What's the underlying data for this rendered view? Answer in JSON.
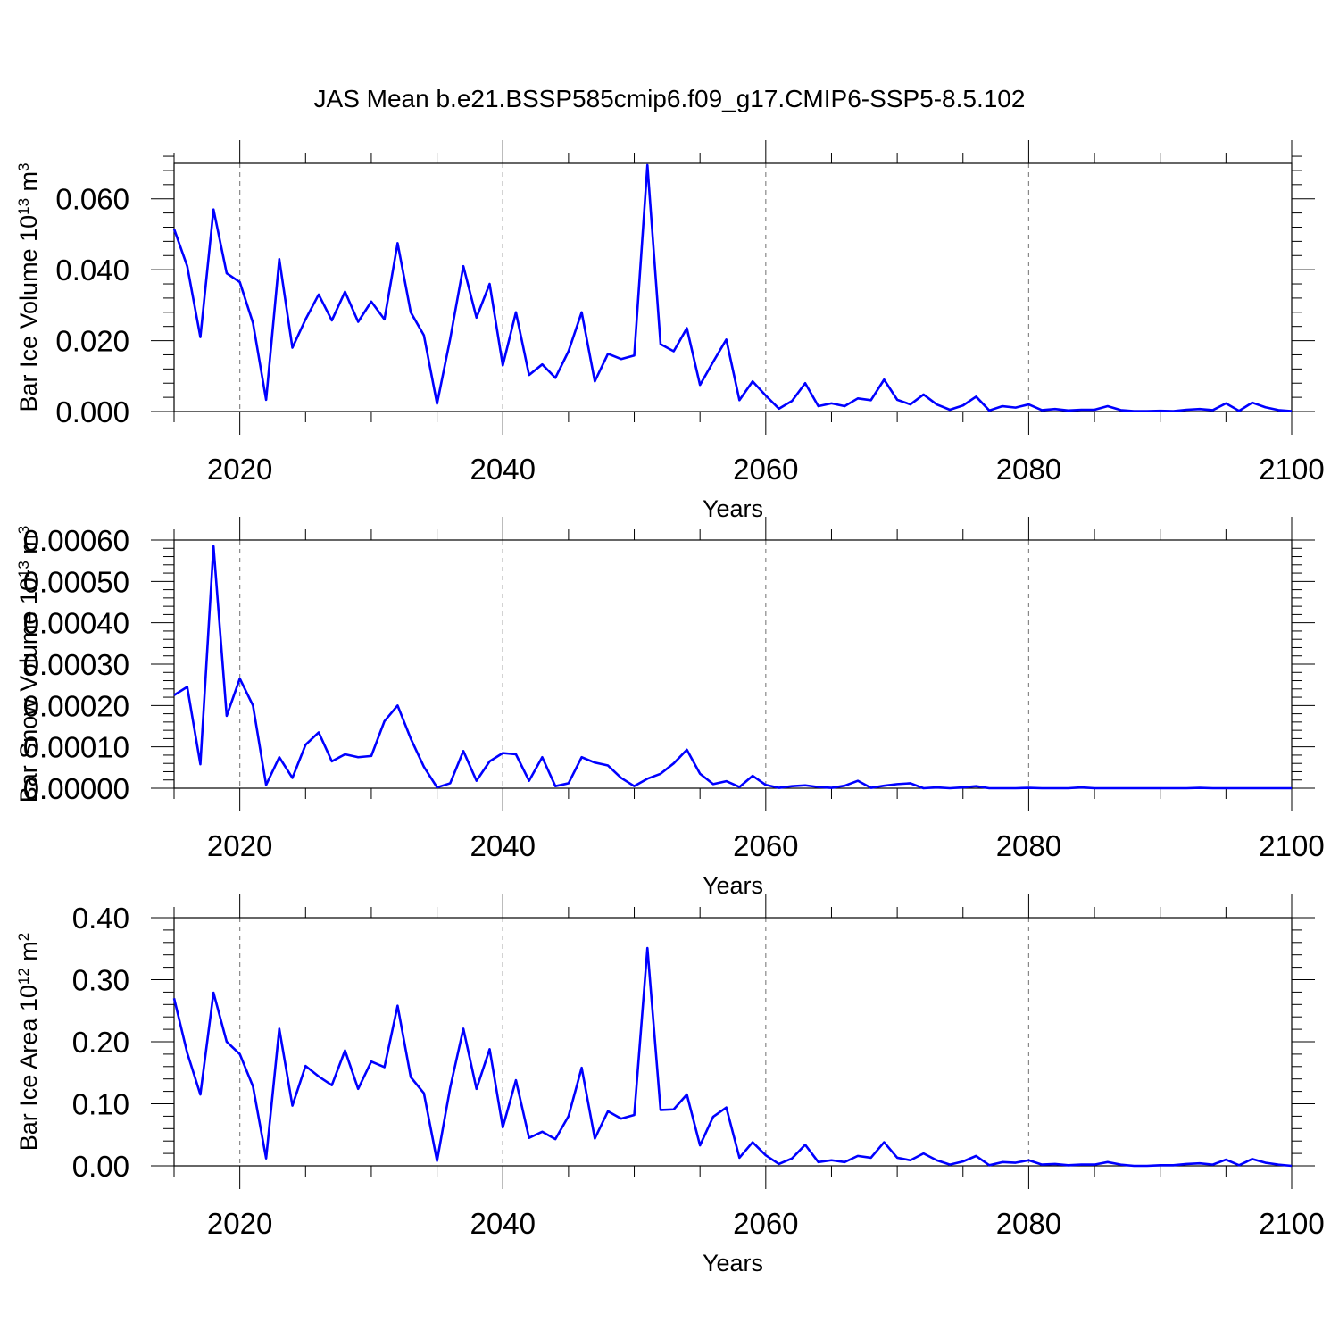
{
  "title": "JAS Mean b.e21.BSSP585cmip6.f09_g17.CMIP6-SSP5-8.5.102",
  "colors": {
    "line": "#0000ff",
    "frame": "#000000",
    "grid": "#888888"
  },
  "chart_data": [
    {
      "type": "line",
      "xlabel": "Years",
      "ylabel_main": "Bar Ice Volume 10",
      "ylabel_exp": "13",
      "ylabel_unit": " m",
      "ylabel_unit_exp": "3",
      "xlim": [
        2015,
        2100
      ],
      "ylim": [
        0.0,
        0.07
      ],
      "xticks": [
        2020,
        2040,
        2060,
        2080,
        2100
      ],
      "yticks": [
        0.0,
        0.02,
        0.04,
        0.06
      ],
      "ytick_labels": [
        "0.000",
        "0.020",
        "0.040",
        "0.060"
      ],
      "grid_x": [
        2020,
        2040,
        2060,
        2080
      ],
      "x": [
        2015,
        2016,
        2017,
        2018,
        2019,
        2020,
        2021,
        2022,
        2023,
        2024,
        2025,
        2026,
        2027,
        2028,
        2029,
        2030,
        2031,
        2032,
        2033,
        2034,
        2035,
        2036,
        2037,
        2038,
        2039,
        2040,
        2041,
        2042,
        2043,
        2044,
        2045,
        2046,
        2047,
        2048,
        2049,
        2050,
        2051,
        2052,
        2053,
        2054,
        2055,
        2056,
        2057,
        2058,
        2059,
        2060,
        2061,
        2062,
        2063,
        2064,
        2065,
        2066,
        2067,
        2068,
        2069,
        2070,
        2071,
        2072,
        2073,
        2074,
        2075,
        2076,
        2077,
        2078,
        2079,
        2080,
        2081,
        2082,
        2083,
        2084,
        2085,
        2086,
        2087,
        2088,
        2089,
        2090,
        2091,
        2092,
        2093,
        2094,
        2095,
        2096,
        2097,
        2098,
        2099,
        2100
      ],
      "series": [
        {
          "values": [
            0.0515,
            0.041,
            0.021,
            0.057,
            0.039,
            0.0365,
            0.025,
            0.0033,
            0.043,
            0.018,
            0.026,
            0.033,
            0.0257,
            0.0338,
            0.0253,
            0.031,
            0.026,
            0.0475,
            0.028,
            0.0215,
            0.0022,
            0.0205,
            0.041,
            0.0265,
            0.036,
            0.013,
            0.028,
            0.0103,
            0.0133,
            0.0095,
            0.017,
            0.028,
            0.0085,
            0.0163,
            0.0148,
            0.0158,
            0.0695,
            0.019,
            0.017,
            0.0235,
            0.0075,
            0.014,
            0.0203,
            0.0032,
            0.0085,
            0.0045,
            0.0008,
            0.003,
            0.008,
            0.0015,
            0.0023,
            0.0015,
            0.0037,
            0.0032,
            0.009,
            0.0033,
            0.002,
            0.0048,
            0.002,
            0.0005,
            0.0017,
            0.0042,
            0.0003,
            0.0015,
            0.0011,
            0.002,
            0.0004,
            0.0007,
            0.0003,
            0.0005,
            0.0005,
            0.0015,
            0.0004,
            0.0001,
            0.0001,
            0.0002,
            0.0001,
            0.0005,
            0.0007,
            0.0004,
            0.0023,
            0.0002,
            0.0025,
            0.0012,
            0.0004,
            0.0001
          ]
        }
      ]
    },
    {
      "type": "line",
      "xlabel": "Years",
      "ylabel_main": "Bar Snow Volume 10",
      "ylabel_exp": "13",
      "ylabel_unit": " m",
      "ylabel_unit_exp": "3",
      "xlim": [
        2015,
        2100
      ],
      "ylim": [
        0.0,
        0.0006
      ],
      "xticks": [
        2020,
        2040,
        2060,
        2080,
        2100
      ],
      "yticks": [
        0.0,
        0.0001,
        0.0002,
        0.0003,
        0.0004,
        0.0005,
        0.0006
      ],
      "ytick_labels": [
        "0.00000",
        "0.00010",
        "0.00020",
        "0.00030",
        "0.00040",
        "0.00050",
        "0.00060"
      ],
      "grid_x": [
        2020,
        2040,
        2060,
        2080
      ],
      "x": [
        2015,
        2016,
        2017,
        2018,
        2019,
        2020,
        2021,
        2022,
        2023,
        2024,
        2025,
        2026,
        2027,
        2028,
        2029,
        2030,
        2031,
        2032,
        2033,
        2034,
        2035,
        2036,
        2037,
        2038,
        2039,
        2040,
        2041,
        2042,
        2043,
        2044,
        2045,
        2046,
        2047,
        2048,
        2049,
        2050,
        2051,
        2052,
        2053,
        2054,
        2055,
        2056,
        2057,
        2058,
        2059,
        2060,
        2061,
        2062,
        2063,
        2064,
        2065,
        2066,
        2067,
        2068,
        2069,
        2070,
        2071,
        2072,
        2073,
        2074,
        2075,
        2076,
        2077,
        2078,
        2079,
        2080,
        2081,
        2082,
        2083,
        2084,
        2085,
        2086,
        2087,
        2088,
        2089,
        2090,
        2091,
        2092,
        2093,
        2094,
        2095,
        2096,
        2097,
        2098,
        2099,
        2100
      ],
      "series": [
        {
          "values": [
            0.000225,
            0.000245,
            5.8e-05,
            0.000585,
            0.000175,
            0.000265,
            0.0002,
            8e-06,
            7.5e-05,
            2.5e-05,
            0.000105,
            0.000135,
            6.5e-05,
            8.2e-05,
            7.5e-05,
            7.8e-05,
            0.000162,
            0.0002,
            0.00012,
            5.2e-05,
            2e-06,
            1.2e-05,
            9e-05,
            1.8e-05,
            6.5e-05,
            8.5e-05,
            8.2e-05,
            1.8e-05,
            7.5e-05,
            5e-06,
            1.2e-05,
            7.5e-05,
            6.2e-05,
            5.5e-05,
            2.5e-05,
            5e-06,
            2.3e-05,
            3.5e-05,
            6e-05,
            9.3e-05,
            3.5e-05,
            1e-05,
            1.7e-05,
            3e-06,
            3e-05,
            8e-06,
            1e-06,
            5e-06,
            7e-06,
            3e-06,
            1e-06,
            6e-06,
            1.8e-05,
            1e-06,
            6e-06,
            1e-05,
            1.2e-05,
            0.0,
            2e-06,
            0.0,
            2e-06,
            5e-06,
            0.0,
            0.0,
            0.0,
            1e-06,
            0.0,
            0.0,
            0.0,
            2e-06,
            0.0,
            0.0,
            0.0,
            0.0,
            0.0,
            0.0,
            0.0,
            0.0,
            1e-06,
            0.0,
            0.0,
            0.0,
            0.0,
            0.0,
            0.0,
            0.0
          ]
        }
      ]
    },
    {
      "type": "line",
      "xlabel": "Years",
      "ylabel_main": "Bar Ice Area 10",
      "ylabel_exp": "12",
      "ylabel_unit": " m",
      "ylabel_unit_exp": "2",
      "xlim": [
        2015,
        2100
      ],
      "ylim": [
        0.0,
        0.4
      ],
      "xticks": [
        2020,
        2040,
        2060,
        2080,
        2100
      ],
      "yticks": [
        0.0,
        0.1,
        0.2,
        0.3,
        0.4
      ],
      "ytick_labels": [
        "0.00",
        "0.10",
        "0.20",
        "0.30",
        "0.40"
      ],
      "grid_x": [
        2020,
        2040,
        2060,
        2080
      ],
      "x": [
        2015,
        2016,
        2017,
        2018,
        2019,
        2020,
        2021,
        2022,
        2023,
        2024,
        2025,
        2026,
        2027,
        2028,
        2029,
        2030,
        2031,
        2032,
        2033,
        2034,
        2035,
        2036,
        2037,
        2038,
        2039,
        2040,
        2041,
        2042,
        2043,
        2044,
        2045,
        2046,
        2047,
        2048,
        2049,
        2050,
        2051,
        2052,
        2053,
        2054,
        2055,
        2056,
        2057,
        2058,
        2059,
        2060,
        2061,
        2062,
        2063,
        2064,
        2065,
        2066,
        2067,
        2068,
        2069,
        2070,
        2071,
        2072,
        2073,
        2074,
        2075,
        2076,
        2077,
        2078,
        2079,
        2080,
        2081,
        2082,
        2083,
        2084,
        2085,
        2086,
        2087,
        2088,
        2089,
        2090,
        2091,
        2092,
        2093,
        2094,
        2095,
        2096,
        2097,
        2098,
        2099,
        2100
      ],
      "series": [
        {
          "values": [
            0.27,
            0.182,
            0.115,
            0.279,
            0.2,
            0.18,
            0.128,
            0.012,
            0.221,
            0.097,
            0.161,
            0.144,
            0.13,
            0.186,
            0.124,
            0.168,
            0.159,
            0.258,
            0.143,
            0.117,
            0.008,
            0.126,
            0.221,
            0.124,
            0.188,
            0.062,
            0.138,
            0.045,
            0.055,
            0.043,
            0.08,
            0.158,
            0.044,
            0.088,
            0.076,
            0.082,
            0.351,
            0.09,
            0.091,
            0.115,
            0.033,
            0.079,
            0.094,
            0.013,
            0.038,
            0.017,
            0.003,
            0.012,
            0.034,
            0.006,
            0.009,
            0.006,
            0.016,
            0.013,
            0.038,
            0.013,
            0.009,
            0.02,
            0.009,
            0.002,
            0.007,
            0.016,
            0.001,
            0.006,
            0.005,
            0.009,
            0.002,
            0.003,
            0.001,
            0.002,
            0.002,
            0.006,
            0.002,
            0.0,
            0.0,
            0.001,
            0.001,
            0.003,
            0.004,
            0.002,
            0.01,
            0.001,
            0.011,
            0.005,
            0.002,
            0.0
          ]
        }
      ]
    }
  ]
}
